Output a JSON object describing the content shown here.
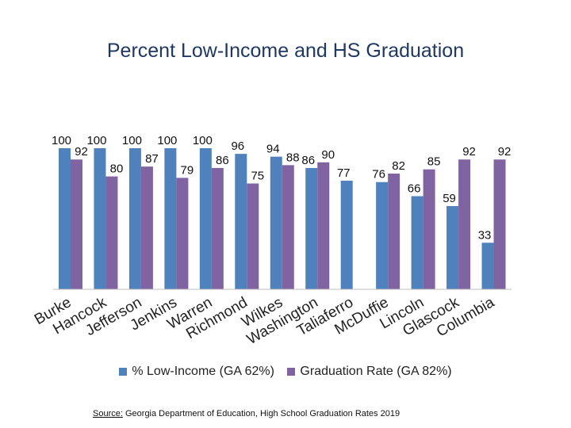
{
  "colors": {
    "low_income": "#4f81bd",
    "graduation": "#8064a2",
    "title": "#1f3864"
  },
  "source": {
    "label": "Source:",
    "text": "Georgia Department of Education, High School Graduation Rates 2019"
  },
  "chart_data": {
    "type": "bar",
    "title": "Percent Low-Income and HS Graduation",
    "xlabel": "",
    "ylabel": "",
    "ylim": [
      0,
      100
    ],
    "grid": false,
    "legend": "bottom",
    "categories": [
      "Burke",
      "Hancock",
      "Jefferson",
      "Jenkins",
      "Warren",
      "Richmond",
      "Wilkes",
      "Washington",
      "Taliaferro",
      "McDuffie",
      "Lincoln",
      "Glascock",
      "Columbia"
    ],
    "series": [
      {
        "name": "% Low-Income (GA 62%)",
        "values": [
          100,
          100,
          100,
          100,
          100,
          96,
          94,
          86,
          77,
          76,
          66,
          59,
          33
        ]
      },
      {
        "name": "Graduation Rate (GA 82%)",
        "values": [
          92,
          80,
          87,
          79,
          86,
          75,
          88,
          90,
          null,
          82,
          85,
          92,
          92
        ]
      }
    ]
  }
}
